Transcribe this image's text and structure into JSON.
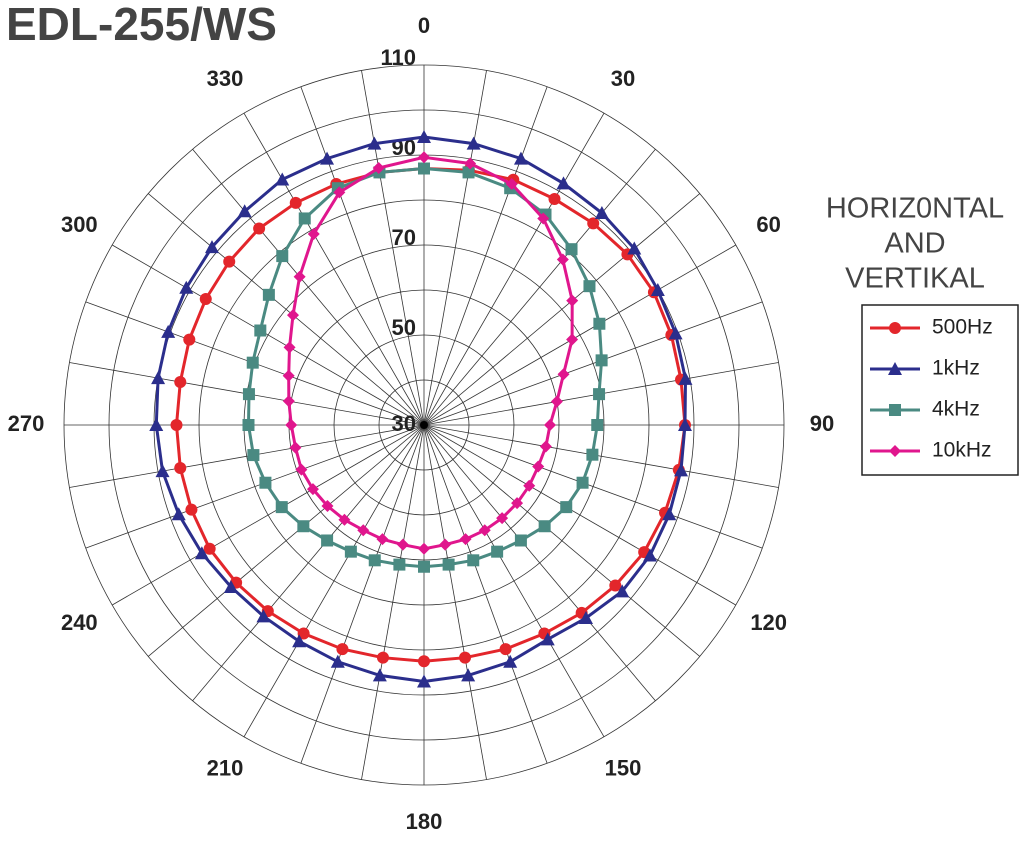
{
  "chart_data": {
    "type": "polar",
    "title": "EDL-255/WS",
    "legend_title": [
      "HORIZ0NTAL",
      "AND",
      "VERTIKAL"
    ],
    "x": [
      0,
      10,
      20,
      30,
      40,
      50,
      60,
      70,
      80,
      90,
      100,
      110,
      120,
      130,
      140,
      150,
      160,
      170,
      180,
      190,
      200,
      210,
      220,
      230,
      240,
      250,
      260,
      270,
      280,
      290,
      300,
      310,
      320,
      330,
      340,
      350
    ],
    "xticks": [
      0,
      30,
      60,
      90,
      120,
      150,
      180,
      210,
      240,
      270,
      300,
      330
    ],
    "ylim": [
      30,
      110
    ],
    "yticks": [
      30,
      50,
      70,
      90,
      110
    ],
    "ygrid": [
      40,
      50,
      60,
      70,
      80,
      90,
      100,
      110
    ],
    "grid": true,
    "series": [
      {
        "name": "500Hz",
        "color": "#e3262b",
        "marker": "circle",
        "values": [
          87,
          87.5,
          88,
          88,
          88.5,
          89,
          89,
          88.5,
          88,
          88,
          87.5,
          87,
          86.5,
          85.5,
          84.5,
          83.5,
          83,
          82.5,
          82.5,
          82.5,
          83,
          83.5,
          84,
          84.5,
          85,
          85,
          85,
          85,
          85,
          85.5,
          86,
          86.5,
          87,
          87,
          87,
          87
        ]
      },
      {
        "name": "1kHz",
        "color": "#2b2e8c",
        "marker": "triangle",
        "values": [
          94,
          93.5,
          93,
          92,
          91.5,
          91,
          90,
          89.5,
          89,
          88,
          88,
          88,
          88,
          87.5,
          86,
          85,
          86,
          86.5,
          87,
          86.5,
          86,
          85.5,
          85.5,
          86,
          87,
          88,
          89,
          89.5,
          90,
          90.5,
          91,
          91.5,
          92,
          93,
          93,
          93.5
        ]
      },
      {
        "name": "4kHz",
        "color": "#4a8a82",
        "marker": "square",
        "values": [
          87,
          87,
          86,
          84,
          81,
          78,
          75,
          72,
          69.5,
          68.5,
          68,
          67.5,
          66.5,
          65,
          63.5,
          62.5,
          62,
          61.5,
          61.5,
          61.5,
          62,
          62.5,
          63.5,
          65,
          66.5,
          67.5,
          68.5,
          69,
          69.5,
          70.5,
          72,
          75,
          79,
          83,
          86,
          87
        ]
      },
      {
        "name": "10kHz",
        "color": "#e0168d",
        "marker": "diamond",
        "values": [
          89.5,
          89,
          87,
          83,
          78,
          73,
          68,
          63,
          60,
          58,
          57.5,
          57,
          57,
          57,
          57,
          57,
          57,
          57,
          57.5,
          57,
          57,
          57,
          57.5,
          58,
          58.5,
          59,
          59,
          59.5,
          60.5,
          62,
          64.5,
          68,
          73,
          79,
          85,
          88
        ]
      }
    ]
  }
}
